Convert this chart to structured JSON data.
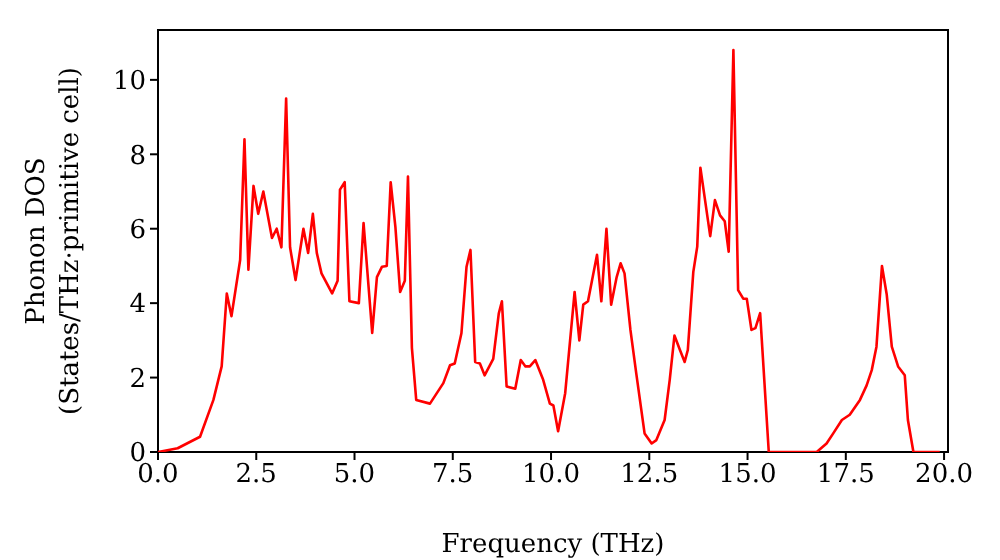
{
  "chart_data": {
    "type": "line",
    "xlabel": "Frequency (THz)",
    "ylabel": "Phonon DOS\n(States/THz·primitive cell)",
    "xlim": [
      0,
      20.1
    ],
    "ylim": [
      0,
      11.34
    ],
    "xticks": [
      {
        "value": 0,
        "label": "0.0"
      },
      {
        "value": 2.5,
        "label": "2.5"
      },
      {
        "value": 5,
        "label": "5.0"
      },
      {
        "value": 7.5,
        "label": "7.5"
      },
      {
        "value": 10,
        "label": "10.0"
      },
      {
        "value": 12.5,
        "label": "12.5"
      },
      {
        "value": 15,
        "label": "15.0"
      },
      {
        "value": 17.5,
        "label": "17.5"
      },
      {
        "value": 20,
        "label": "20.0"
      }
    ],
    "yticks": [
      0,
      2,
      4,
      6,
      8,
      10
    ],
    "grid": false,
    "legend": false,
    "series": [
      {
        "color": "#ff0000",
        "x": [
          0,
          0.5,
          1.07,
          1.41,
          1.62,
          1.75,
          1.87,
          2.09,
          2.2,
          2.3,
          2.43,
          2.55,
          2.68,
          2.9,
          3.02,
          3.14,
          3.26,
          3.36,
          3.5,
          3.7,
          3.82,
          3.94,
          4.04,
          4.16,
          4.43,
          4.57,
          4.63,
          4.75,
          4.87,
          5.11,
          5.23,
          5.45,
          5.57,
          5.7,
          5.82,
          5.92,
          6.04,
          6.16,
          6.28,
          6.36,
          6.46,
          6.57,
          6.92,
          7.26,
          7.43,
          7.55,
          7.72,
          7.85,
          7.95,
          8.07,
          8.19,
          8.31,
          8.53,
          8.67,
          8.75,
          8.87,
          9.09,
          9.23,
          9.35,
          9.46,
          9.6,
          9.8,
          9.97,
          10.06,
          10.18,
          10.36,
          10.6,
          10.72,
          10.82,
          10.94,
          11.17,
          11.28,
          11.41,
          11.53,
          11.67,
          11.77,
          11.87,
          12.02,
          12.17,
          12.38,
          12.56,
          12.68,
          12.89,
          13.02,
          13.14,
          13.28,
          13.4,
          13.48,
          13.62,
          13.72,
          13.8,
          14.05,
          14.17,
          14.3,
          14.42,
          14.52,
          14.64,
          14.76,
          14.89,
          14.98,
          15.1,
          15.2,
          15.32,
          15.54,
          16.76,
          17.01,
          17.18,
          17.4,
          17.6,
          17.86,
          18.03,
          18.16,
          18.28,
          18.42,
          18.54,
          18.67,
          18.83,
          19.0,
          19.08,
          19.22,
          19.89
        ],
        "values": [
          0,
          0.1,
          0.41,
          1.4,
          2.3,
          4.26,
          3.65,
          5.16,
          8.4,
          4.9,
          7.15,
          6.4,
          7.0,
          5.75,
          6.0,
          5.5,
          9.5,
          5.5,
          4.62,
          6.0,
          5.35,
          6.4,
          5.35,
          4.8,
          4.26,
          4.6,
          7.05,
          7.25,
          4.05,
          4.0,
          6.15,
          3.2,
          4.7,
          4.98,
          5.0,
          7.25,
          6.05,
          4.3,
          4.6,
          7.4,
          2.8,
          1.4,
          1.3,
          1.85,
          2.33,
          2.38,
          3.19,
          4.98,
          5.43,
          2.42,
          2.38,
          2.06,
          2.5,
          3.72,
          4.05,
          1.76,
          1.7,
          2.47,
          2.3,
          2.3,
          2.47,
          1.94,
          1.3,
          1.25,
          0.56,
          1.58,
          4.3,
          3.0,
          3.96,
          4.05,
          5.3,
          4.05,
          6.0,
          3.96,
          4.7,
          5.07,
          4.8,
          3.28,
          2.1,
          0.5,
          0.23,
          0.32,
          0.86,
          1.94,
          3.13,
          2.74,
          2.42,
          2.74,
          4.84,
          5.52,
          7.64,
          5.8,
          6.77,
          6.36,
          6.2,
          5.38,
          10.8,
          4.35,
          4.12,
          4.12,
          3.28,
          3.33,
          3.73,
          0,
          0,
          0.23,
          0.5,
          0.86,
          1.0,
          1.4,
          1.79,
          2.2,
          2.83,
          5.0,
          4.24,
          2.83,
          2.3,
          2.06,
          0.86,
          0,
          0
        ]
      }
    ]
  }
}
